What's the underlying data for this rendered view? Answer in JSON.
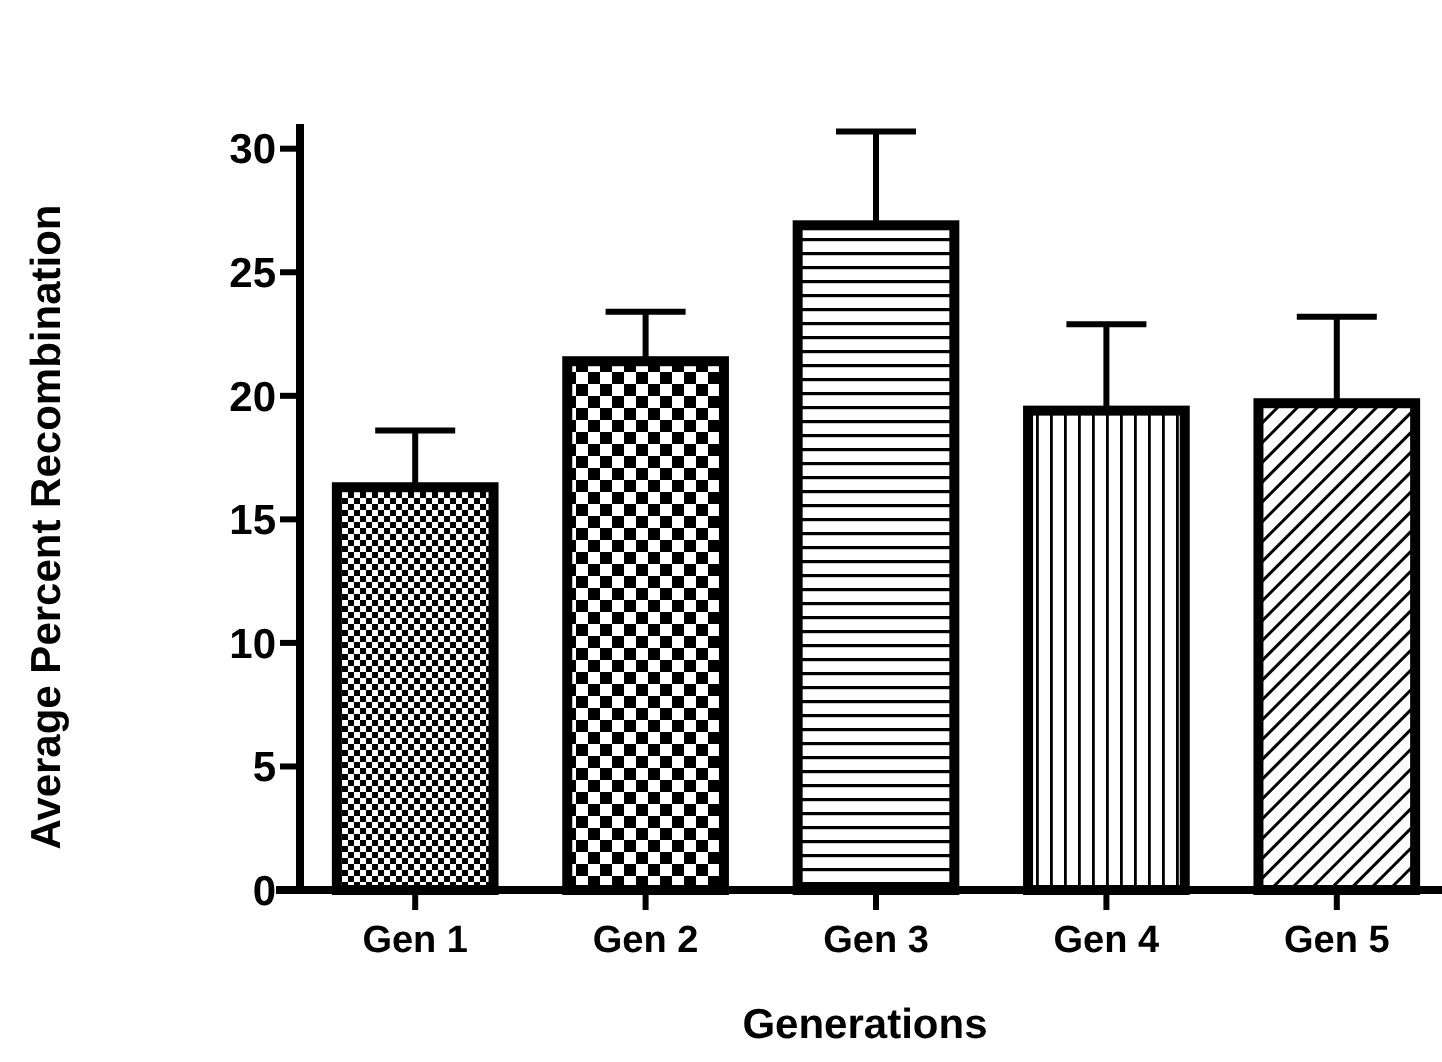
{
  "chart_data": {
    "type": "bar",
    "xlabel": "Generations",
    "ylabel": "Average Percent Recombination",
    "categories": [
      "Gen 1",
      "Gen 2",
      "Gen 3",
      "Gen 4",
      "Gen 5"
    ],
    "values": [
      16.3,
      21.4,
      26.9,
      19.4,
      19.7
    ],
    "errors": [
      [
        16.3,
        18.6
      ],
      [
        21.4,
        23.4
      ],
      [
        26.9,
        30.7
      ],
      [
        19.4,
        22.9
      ],
      [
        19.7,
        23.2
      ]
    ],
    "color": "#000000",
    "ylim": [
      0,
      31
    ],
    "yticks": [
      0,
      5,
      10,
      15,
      20,
      25,
      30
    ],
    "grid": false
  }
}
